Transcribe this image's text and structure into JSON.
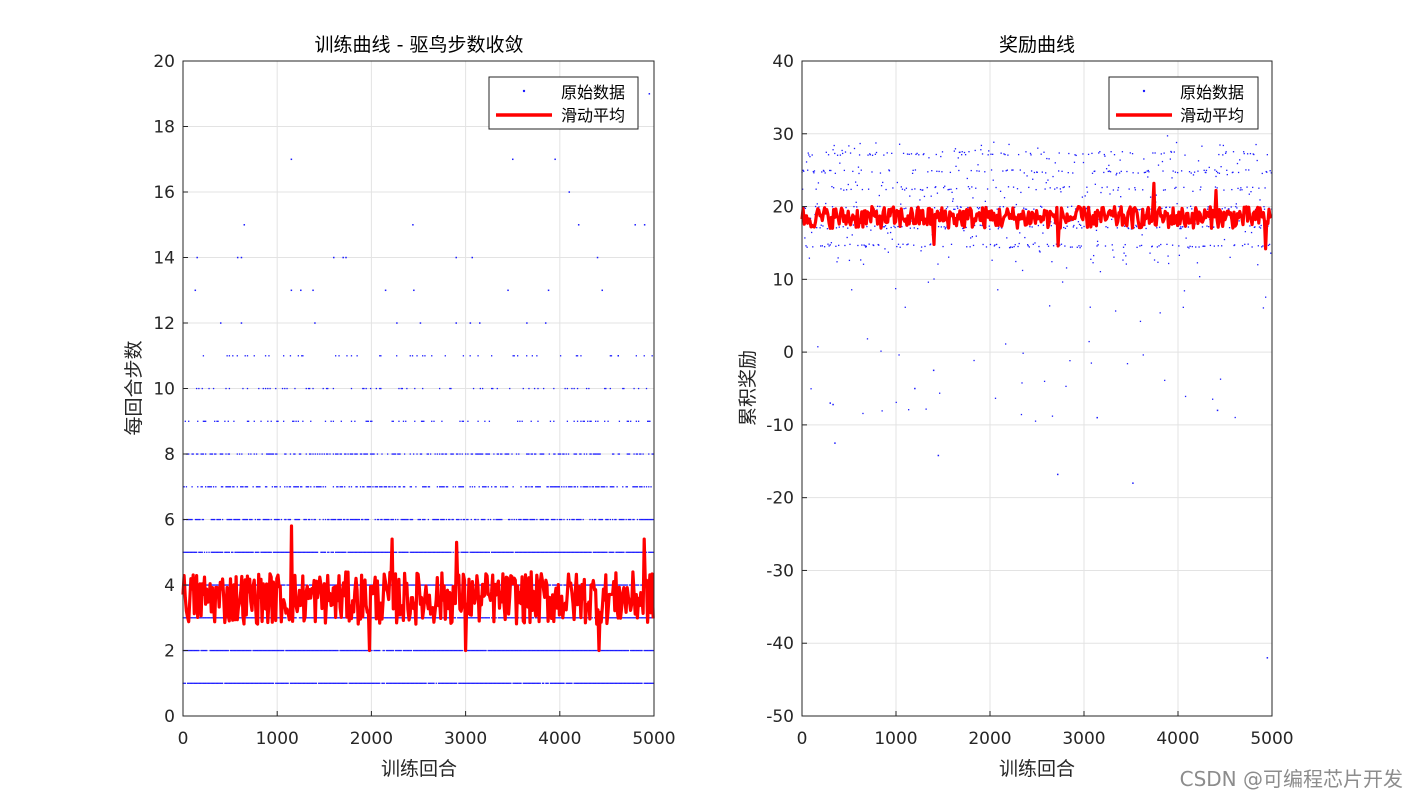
{
  "colors": {
    "raw": "#1a1aff",
    "avg": "#ff0000",
    "grid": "#e3e3e3",
    "axis": "#262626"
  },
  "watermark": "CSDN @可编程芯片开发",
  "chart_data": [
    {
      "type": "scatter",
      "title": "训练曲线 - 驱鸟步数收敛",
      "xlabel": "训练回合",
      "ylabel": "每回合步数",
      "xlim": [
        0,
        5000
      ],
      "ylim": [
        0,
        20
      ],
      "xticks": [
        "0",
        "1000",
        "2000",
        "3000",
        "4000",
        "5000"
      ],
      "yticks": [
        "0",
        "2",
        "4",
        "6",
        "8",
        "10",
        "12",
        "14",
        "16",
        "18",
        "20"
      ],
      "legend": [
        "原始数据",
        "滑动平均"
      ],
      "legend_position": "top-right",
      "series": [
        {
          "name": "原始数据",
          "kind": "points",
          "episodes": 5000,
          "levels": [
            {
              "value": 1,
              "density": 0.95
            },
            {
              "value": 2,
              "density": 0.95
            },
            {
              "value": 3,
              "density": 0.95
            },
            {
              "value": 4,
              "density": 0.95
            },
            {
              "value": 5,
              "density": 0.92
            },
            {
              "value": 6,
              "density": 0.7
            },
            {
              "value": 7,
              "density": 0.55
            },
            {
              "value": 8,
              "density": 0.45
            },
            {
              "value": 9,
              "density": 0.2
            },
            {
              "value": 10,
              "density": 0.15
            },
            {
              "value": 11,
              "density": 0.1
            }
          ],
          "outliers": [
            {
              "x": 150,
              "y": 14
            },
            {
              "x": 130,
              "y": 13
            },
            {
              "x": 400,
              "y": 12
            },
            {
              "x": 580,
              "y": 14
            },
            {
              "x": 620,
              "y": 14
            },
            {
              "x": 620,
              "y": 12
            },
            {
              "x": 650,
              "y": 15
            },
            {
              "x": 1150,
              "y": 17
            },
            {
              "x": 1150,
              "y": 13
            },
            {
              "x": 1250,
              "y": 13
            },
            {
              "x": 1380,
              "y": 13
            },
            {
              "x": 1400,
              "y": 12
            },
            {
              "x": 1600,
              "y": 14
            },
            {
              "x": 1700,
              "y": 14
            },
            {
              "x": 1730,
              "y": 14
            },
            {
              "x": 2150,
              "y": 13
            },
            {
              "x": 2270,
              "y": 12
            },
            {
              "x": 2440,
              "y": 15
            },
            {
              "x": 2450,
              "y": 13
            },
            {
              "x": 2520,
              "y": 12
            },
            {
              "x": 2900,
              "y": 14
            },
            {
              "x": 2900,
              "y": 12
            },
            {
              "x": 3050,
              "y": 12
            },
            {
              "x": 3070,
              "y": 14
            },
            {
              "x": 3150,
              "y": 12
            },
            {
              "x": 3450,
              "y": 13
            },
            {
              "x": 3500,
              "y": 17
            },
            {
              "x": 3650,
              "y": 12
            },
            {
              "x": 3850,
              "y": 12
            },
            {
              "x": 3880,
              "y": 13
            },
            {
              "x": 3950,
              "y": 17
            },
            {
              "x": 4100,
              "y": 16
            },
            {
              "x": 4200,
              "y": 15
            },
            {
              "x": 4400,
              "y": 14
            },
            {
              "x": 4450,
              "y": 13
            },
            {
              "x": 4620,
              "y": 11
            },
            {
              "x": 4800,
              "y": 15
            },
            {
              "x": 4900,
              "y": 15
            },
            {
              "x": 4950,
              "y": 19
            }
          ]
        },
        {
          "name": "滑动平均",
          "kind": "line",
          "mean": 3.6,
          "amplitude": 0.8,
          "range": [
            2.0,
            5.8
          ],
          "peaks": [
            {
              "x": 1150,
              "y": 5.8
            },
            {
              "x": 2220,
              "y": 5.4
            },
            {
              "x": 2900,
              "y": 5.3
            },
            {
              "x": 4900,
              "y": 5.4
            },
            {
              "x": 1980,
              "y": 2.0
            },
            {
              "x": 3000,
              "y": 2.0
            },
            {
              "x": 4420,
              "y": 2.0
            }
          ]
        }
      ]
    },
    {
      "type": "scatter",
      "title": "奖励曲线",
      "xlabel": "训练回合",
      "ylabel": "累积奖励",
      "xlim": [
        0,
        5000
      ],
      "ylim": [
        -50,
        40
      ],
      "xticks": [
        "0",
        "1000",
        "2000",
        "3000",
        "4000",
        "5000"
      ],
      "yticks": [
        "-50",
        "-40",
        "-30",
        "-20",
        "-10",
        "0",
        "10",
        "20",
        "30",
        "40"
      ],
      "legend": [
        "原始数据",
        "滑动平均"
      ],
      "legend_position": "top-right",
      "series": [
        {
          "name": "原始数据",
          "kind": "points",
          "episodes": 5000,
          "dense_bands": [
            14.6,
            17.2,
            19.8,
            22.5,
            24.8,
            27.3
          ],
          "spread_range": [
            -10,
            31
          ],
          "outliers": [
            {
              "x": 300,
              "y": -7
            },
            {
              "x": 330,
              "y": -7.2
            },
            {
              "x": 350,
              "y": -12.5
            },
            {
              "x": 1450,
              "y": -14.2
            },
            {
              "x": 2720,
              "y": -16.8
            },
            {
              "x": 3520,
              "y": -18
            },
            {
              "x": 4950,
              "y": -42
            },
            {
              "x": 4420,
              "y": -8
            },
            {
              "x": 3140,
              "y": -9
            },
            {
              "x": 1200,
              "y": -5
            },
            {
              "x": 1400,
              "y": -2.5
            }
          ]
        },
        {
          "name": "滑动平均",
          "kind": "line",
          "mean": 18.5,
          "amplitude": 1.5,
          "range": [
            14.2,
            23.2
          ],
          "peaks": [
            {
              "x": 3740,
              "y": 23.2
            },
            {
              "x": 4400,
              "y": 22.2
            },
            {
              "x": 1400,
              "y": 14.8
            },
            {
              "x": 2720,
              "y": 14.6
            },
            {
              "x": 4930,
              "y": 14.2
            }
          ]
        }
      ]
    }
  ]
}
